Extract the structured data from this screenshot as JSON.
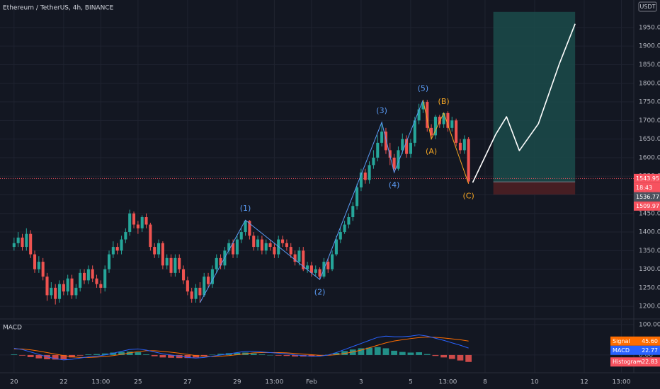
{
  "chart_data": {
    "type": "candlestick",
    "title": "Ethereum / TetherUS, 4h, BINANCE",
    "currency": "USDT",
    "xlim": [
      -3.4,
      150
    ],
    "ylim": [
      1168,
      2024
    ],
    "grid": true,
    "up_color": "#26a69a",
    "down_color": "#ef5350",
    "xticks": [
      {
        "value": 0,
        "label": "20"
      },
      {
        "value": 12,
        "label": "22"
      },
      {
        "value": 21,
        "label": "13:00"
      },
      {
        "value": 30,
        "label": "25"
      },
      {
        "value": 42,
        "label": "27"
      },
      {
        "value": 54,
        "label": "29"
      },
      {
        "value": 63,
        "label": "13:00"
      },
      {
        "value": 72,
        "label": "Feb"
      },
      {
        "value": 84,
        "label": "3"
      },
      {
        "value": 96,
        "label": "5"
      },
      {
        "value": 105,
        "label": "13:00"
      },
      {
        "value": 114,
        "label": "8"
      },
      {
        "value": 126,
        "label": "10"
      },
      {
        "value": 138,
        "label": "12"
      },
      {
        "value": 147,
        "label": "13:00"
      }
    ],
    "yticks": [
      {
        "value": 1200,
        "label": "1200.00"
      },
      {
        "value": 1250,
        "label": "1250.00"
      },
      {
        "value": 1300,
        "label": "1300.00"
      },
      {
        "value": 1350,
        "label": "1350.00"
      },
      {
        "value": 1400,
        "label": "1400.00"
      },
      {
        "value": 1450,
        "label": "1450.00"
      },
      {
        "value": 1500,
        "label": "1500.00"
      },
      {
        "value": 1550,
        "label": "1550.00"
      },
      {
        "value": 1600,
        "label": "1600.00"
      },
      {
        "value": 1650,
        "label": "1650.00"
      },
      {
        "value": 1700,
        "label": "1700.00"
      },
      {
        "value": 1750,
        "label": "1750.00"
      },
      {
        "value": 1800,
        "label": "1800.00"
      },
      {
        "value": 1850,
        "label": "1850.00"
      },
      {
        "value": 1900,
        "label": "1900.00"
      },
      {
        "value": 1950,
        "label": "1950.00"
      }
    ],
    "candles": {
      "open": [
        1360,
        1370,
        1385,
        1360,
        1395,
        1340,
        1300,
        1320,
        1280,
        1230,
        1250,
        1220,
        1260,
        1240,
        1275,
        1230,
        1250,
        1290,
        1270,
        1300,
        1275,
        1260,
        1250,
        1300,
        1340,
        1360,
        1350,
        1380,
        1400,
        1450,
        1420,
        1410,
        1440,
        1420,
        1360,
        1340,
        1370,
        1310,
        1330,
        1290,
        1330,
        1300,
        1270,
        1240,
        1220,
        1250,
        1230,
        1280,
        1260,
        1300,
        1330,
        1310,
        1350,
        1370,
        1340,
        1380,
        1400,
        1430,
        1390,
        1360,
        1380,
        1350,
        1370,
        1360,
        1340,
        1380,
        1370,
        1360,
        1340,
        1320,
        1350,
        1300,
        1310,
        1290,
        1300,
        1280,
        1320,
        1300,
        1340,
        1380,
        1400,
        1420,
        1440,
        1470,
        1520,
        1560,
        1540,
        1580,
        1600,
        1640,
        1670,
        1620,
        1600,
        1570,
        1620,
        1650,
        1610,
        1640,
        1700,
        1730,
        1750,
        1680,
        1660,
        1710,
        1690,
        1720,
        1680,
        1700,
        1640,
        1620,
        1650
      ],
      "high": [
        1385,
        1400,
        1395,
        1410,
        1405,
        1350,
        1335,
        1330,
        1290,
        1265,
        1260,
        1270,
        1270,
        1285,
        1285,
        1260,
        1300,
        1300,
        1310,
        1310,
        1285,
        1270,
        1310,
        1350,
        1375,
        1370,
        1390,
        1410,
        1460,
        1455,
        1430,
        1445,
        1450,
        1425,
        1370,
        1380,
        1375,
        1340,
        1340,
        1340,
        1340,
        1310,
        1280,
        1250,
        1260,
        1265,
        1290,
        1290,
        1310,
        1340,
        1340,
        1360,
        1380,
        1380,
        1390,
        1410,
        1432,
        1432,
        1400,
        1390,
        1390,
        1380,
        1380,
        1370,
        1390,
        1390,
        1380,
        1370,
        1350,
        1360,
        1360,
        1320,
        1320,
        1310,
        1305,
        1330,
        1330,
        1350,
        1390,
        1410,
        1430,
        1450,
        1480,
        1530,
        1570,
        1570,
        1590,
        1620,
        1660,
        1695,
        1680,
        1640,
        1610,
        1630,
        1665,
        1660,
        1650,
        1710,
        1745,
        1755,
        1755,
        1690,
        1715,
        1715,
        1720,
        1725,
        1710,
        1705,
        1650,
        1660,
        1655
      ],
      "low": [
        1350,
        1360,
        1350,
        1350,
        1330,
        1290,
        1290,
        1270,
        1215,
        1220,
        1205,
        1210,
        1230,
        1230,
        1220,
        1220,
        1240,
        1260,
        1260,
        1265,
        1250,
        1235,
        1240,
        1290,
        1330,
        1340,
        1340,
        1370,
        1390,
        1410,
        1395,
        1400,
        1410,
        1350,
        1330,
        1330,
        1300,
        1300,
        1280,
        1280,
        1290,
        1260,
        1230,
        1210,
        1210,
        1210,
        1225,
        1250,
        1250,
        1290,
        1300,
        1300,
        1340,
        1330,
        1330,
        1370,
        1390,
        1380,
        1350,
        1350,
        1340,
        1340,
        1350,
        1330,
        1330,
        1360,
        1350,
        1330,
        1310,
        1310,
        1295,
        1290,
        1280,
        1280,
        1272,
        1275,
        1290,
        1295,
        1335,
        1370,
        1395,
        1410,
        1430,
        1460,
        1510,
        1530,
        1530,
        1570,
        1590,
        1630,
        1610,
        1580,
        1560,
        1565,
        1610,
        1600,
        1600,
        1630,
        1690,
        1720,
        1670,
        1650,
        1650,
        1680,
        1680,
        1670,
        1670,
        1630,
        1610,
        1610,
        1530
      ],
      "close": [
        1370,
        1385,
        1360,
        1395,
        1340,
        1300,
        1320,
        1280,
        1230,
        1250,
        1220,
        1260,
        1240,
        1275,
        1230,
        1250,
        1290,
        1270,
        1300,
        1275,
        1260,
        1250,
        1300,
        1340,
        1360,
        1350,
        1380,
        1400,
        1450,
        1420,
        1410,
        1440,
        1420,
        1360,
        1340,
        1370,
        1310,
        1330,
        1290,
        1330,
        1300,
        1270,
        1240,
        1220,
        1250,
        1230,
        1280,
        1260,
        1300,
        1330,
        1310,
        1350,
        1370,
        1340,
        1380,
        1400,
        1430,
        1390,
        1360,
        1380,
        1350,
        1370,
        1360,
        1340,
        1380,
        1370,
        1360,
        1340,
        1320,
        1350,
        1300,
        1310,
        1290,
        1300,
        1280,
        1320,
        1300,
        1340,
        1380,
        1400,
        1420,
        1440,
        1470,
        1520,
        1560,
        1540,
        1580,
        1600,
        1640,
        1670,
        1620,
        1600,
        1570,
        1620,
        1650,
        1610,
        1640,
        1700,
        1730,
        1750,
        1680,
        1660,
        1710,
        1690,
        1720,
        1680,
        1700,
        1640,
        1620,
        1650,
        1536
      ]
    },
    "impulse": {
      "color": "#5b9cf6",
      "x": [
        45,
        56,
        74,
        89,
        92,
        99
      ],
      "values": [
        1210,
        1432,
        1272,
        1695,
        1560,
        1755
      ],
      "labels": [
        null,
        "(1)",
        "(2)",
        "(3)",
        "(4)",
        "(5)"
      ]
    },
    "correction": {
      "color": "#f5a623",
      "x": [
        99,
        101,
        104,
        110
      ],
      "values": [
        1755,
        1650,
        1720,
        1530
      ],
      "labels": [
        null,
        "(A)",
        "(B)",
        "(C)"
      ]
    },
    "projection": {
      "color": "#ffffff",
      "x": [
        111,
        116.6,
        119.2,
        122.3,
        126.9,
        132,
        135.8
      ],
      "values": [
        1533,
        1663,
        1710,
        1619,
        1691,
        1853,
        1960
      ]
    },
    "position": {
      "x": [
        116,
        135.8
      ],
      "target": 1992,
      "entry": 1535,
      "stop": 1501,
      "profit_color": "#1b4b4a",
      "loss_color": "#4d1f24"
    },
    "price_tags": [
      {
        "value": 1543.95,
        "label": "1543.95",
        "countdown": "18:43",
        "color": "#f7525f"
      },
      {
        "value": 1536.77,
        "label": "1536.77",
        "color": "#4c525e"
      },
      {
        "value": 1509.97,
        "label": "1509.97",
        "color": "#f7525f"
      }
    ],
    "macd": {
      "title": "MACD",
      "ylim": [
        -42,
        116
      ],
      "yticks": [
        {
          "value": 100,
          "label": "100.00"
        },
        {
          "value": 0,
          "label": "0.00"
        }
      ],
      "x": [
        0,
        2,
        4,
        6,
        8,
        10,
        12,
        14,
        16,
        18,
        20,
        22,
        24,
        26,
        28,
        30,
        32,
        34,
        36,
        38,
        40,
        42,
        44,
        46,
        48,
        50,
        52,
        54,
        56,
        58,
        60,
        62,
        64,
        66,
        68,
        70,
        72,
        74,
        76,
        78,
        80,
        82,
        84,
        86,
        88,
        90,
        92,
        94,
        96,
        98,
        100,
        102,
        104,
        106,
        108,
        110
      ],
      "series": [
        {
          "name": "Signal",
          "color": "#ff6d00",
          "value_labels": [
            null,
            null,
            null,
            null,
            null,
            null,
            null,
            null,
            null,
            null,
            null,
            null,
            null,
            null,
            null,
            null,
            null,
            null,
            null,
            null,
            null,
            null,
            null,
            null,
            null,
            null,
            null,
            null,
            null,
            null,
            null,
            null,
            null,
            null,
            null,
            null,
            null,
            null,
            null,
            null,
            null,
            null,
            null,
            null,
            null,
            null,
            null,
            null,
            null,
            null,
            null,
            null,
            null,
            null,
            null,
            "45.60"
          ],
          "values": [
            20,
            20,
            17,
            13,
            8,
            3,
            -2,
            -6,
            -8,
            -8,
            -7,
            -5,
            -2,
            2,
            7,
            11,
            14,
            14,
            12,
            9,
            6,
            2,
            -2,
            -4,
            -5,
            -4,
            -2,
            1,
            4,
            7,
            8,
            8,
            8,
            7,
            5,
            3,
            1,
            -1,
            -1,
            1,
            5,
            10,
            16,
            24,
            32,
            40,
            46,
            50,
            54,
            57,
            59,
            58,
            56,
            53,
            50,
            45.6
          ]
        },
        {
          "name": "MACD",
          "color": "#2962ff",
          "values": [
            22,
            18,
            10,
            2,
            -6,
            -12,
            -16,
            -14,
            -10,
            -6,
            -4,
            0,
            6,
            12,
            18,
            20,
            16,
            10,
            4,
            0,
            -4,
            -8,
            -10,
            -8,
            -4,
            0,
            4,
            8,
            12,
            12,
            10,
            8,
            6,
            4,
            0,
            -2,
            -4,
            -4,
            0,
            8,
            18,
            28,
            38,
            48,
            58,
            62,
            60,
            60,
            62,
            66,
            62,
            55,
            48,
            40,
            32,
            22.77
          ]
        },
        {
          "name": "Histogram",
          "color": "#f7525f",
          "up_color": "#26a69a",
          "down_color": "#ef5350",
          "value_labels": [
            null,
            null,
            null,
            null,
            null,
            null,
            null,
            null,
            null,
            null,
            null,
            null,
            null,
            null,
            null,
            null,
            null,
            null,
            null,
            null,
            null,
            null,
            null,
            null,
            null,
            null,
            null,
            null,
            null,
            null,
            null,
            null,
            null,
            null,
            null,
            null,
            null,
            null,
            null,
            null,
            null,
            null,
            null,
            null,
            null,
            null,
            null,
            null,
            null,
            null,
            null,
            null,
            null,
            null,
            null,
            "−22.83"
          ],
          "values": [
            2,
            -2,
            -7,
            -11,
            -14,
            -15,
            -14,
            -8,
            -2,
            2,
            3,
            5,
            8,
            10,
            11,
            9,
            2,
            -4,
            -8,
            -9,
            -10,
            -10,
            -8,
            -4,
            1,
            4,
            6,
            7,
            8,
            5,
            2,
            0,
            -2,
            -3,
            -5,
            -5,
            -5,
            -3,
            1,
            7,
            13,
            18,
            22,
            24,
            26,
            22,
            14,
            10,
            8,
            9,
            3,
            -3,
            -8,
            -13,
            -18,
            -22.83
          ]
        }
      ]
    }
  }
}
